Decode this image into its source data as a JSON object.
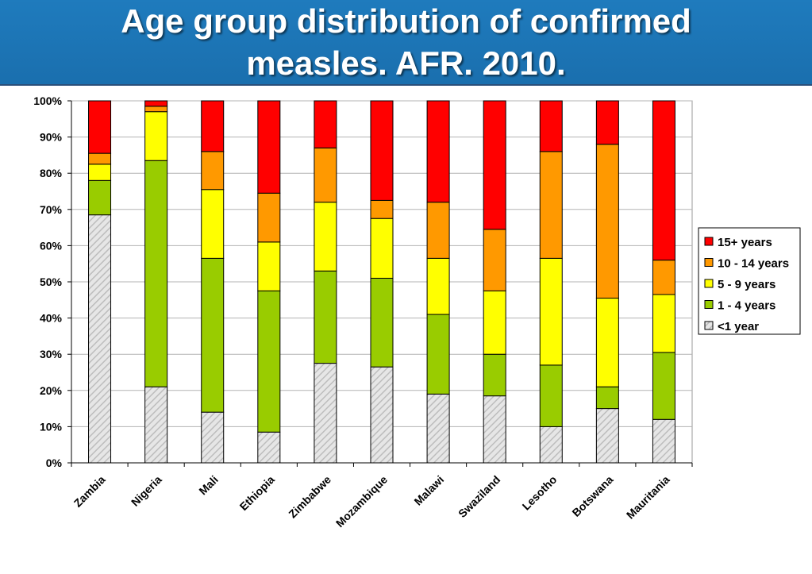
{
  "slide": {
    "title": "Age group distribution of confirmed\nmeasles. AFR. 2010."
  },
  "chart_data": {
    "type": "bar",
    "stacked": true,
    "normalized_percent": true,
    "categories": [
      "Zambia",
      "Nigeria",
      "Mali",
      "Ethiopia",
      "Zimbabwe",
      "Mozambique",
      "Malawi",
      "Swaziland",
      "Lesotho",
      "Botswana",
      "Mauritania"
    ],
    "series": [
      {
        "name": "<1 year",
        "color": "#d9d9d9",
        "pattern": "diagonal-hatch",
        "values": [
          68.5,
          21,
          14,
          8.5,
          27.5,
          26.5,
          19,
          18.5,
          10,
          15,
          12
        ]
      },
      {
        "name": "1 - 4 years",
        "color": "#99cc00",
        "values": [
          9.5,
          62.5,
          42.5,
          39,
          25.5,
          24.5,
          22,
          11.5,
          17,
          6,
          18.5
        ]
      },
      {
        "name": "5 - 9 years",
        "color": "#ffff00",
        "values": [
          4.5,
          13.5,
          19,
          13.5,
          19,
          16.5,
          15.5,
          17.5,
          29.5,
          24.5,
          16
        ]
      },
      {
        "name": "10 - 14 years",
        "color": "#ff9900",
        "values": [
          3,
          1.5,
          10.5,
          13.5,
          15,
          5,
          15.5,
          17,
          29.5,
          42.5,
          9.5
        ]
      },
      {
        "name": "15+ years",
        "color": "#ff0000",
        "values": [
          14.5,
          1.5,
          14,
          25.5,
          13,
          27.5,
          28,
          35.5,
          14,
          12,
          44
        ]
      }
    ],
    "legend_order": [
      "15+ years",
      "10 - 14 years",
      "5 - 9 years",
      "1 - 4 years",
      "<1 year"
    ],
    "y_ticks": [
      "0%",
      "10%",
      "20%",
      "30%",
      "40%",
      "50%",
      "60%",
      "70%",
      "80%",
      "90%",
      "100%"
    ],
    "ylim": [
      0,
      100
    ],
    "grid": true,
    "legend_position": "right"
  }
}
